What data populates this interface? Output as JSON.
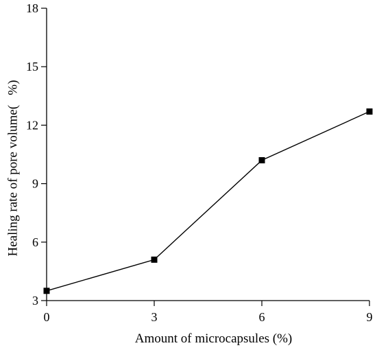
{
  "chart_data": {
    "type": "line",
    "xlabel": "Amount of microcapsules (%)",
    "ylabel": "Healing rate of pore volume(   %)",
    "xlim": [
      0,
      9
    ],
    "ylim": [
      3,
      18
    ],
    "x_ticks": [
      0,
      3,
      6,
      9
    ],
    "y_ticks": [
      3,
      6,
      9,
      12,
      15,
      18
    ],
    "grid": false,
    "series": [
      {
        "x": [
          0,
          3,
          6,
          9
        ],
        "values": [
          3.5,
          5.1,
          10.2,
          12.7
        ],
        "marker": "square",
        "color": "#000000"
      }
    ]
  }
}
